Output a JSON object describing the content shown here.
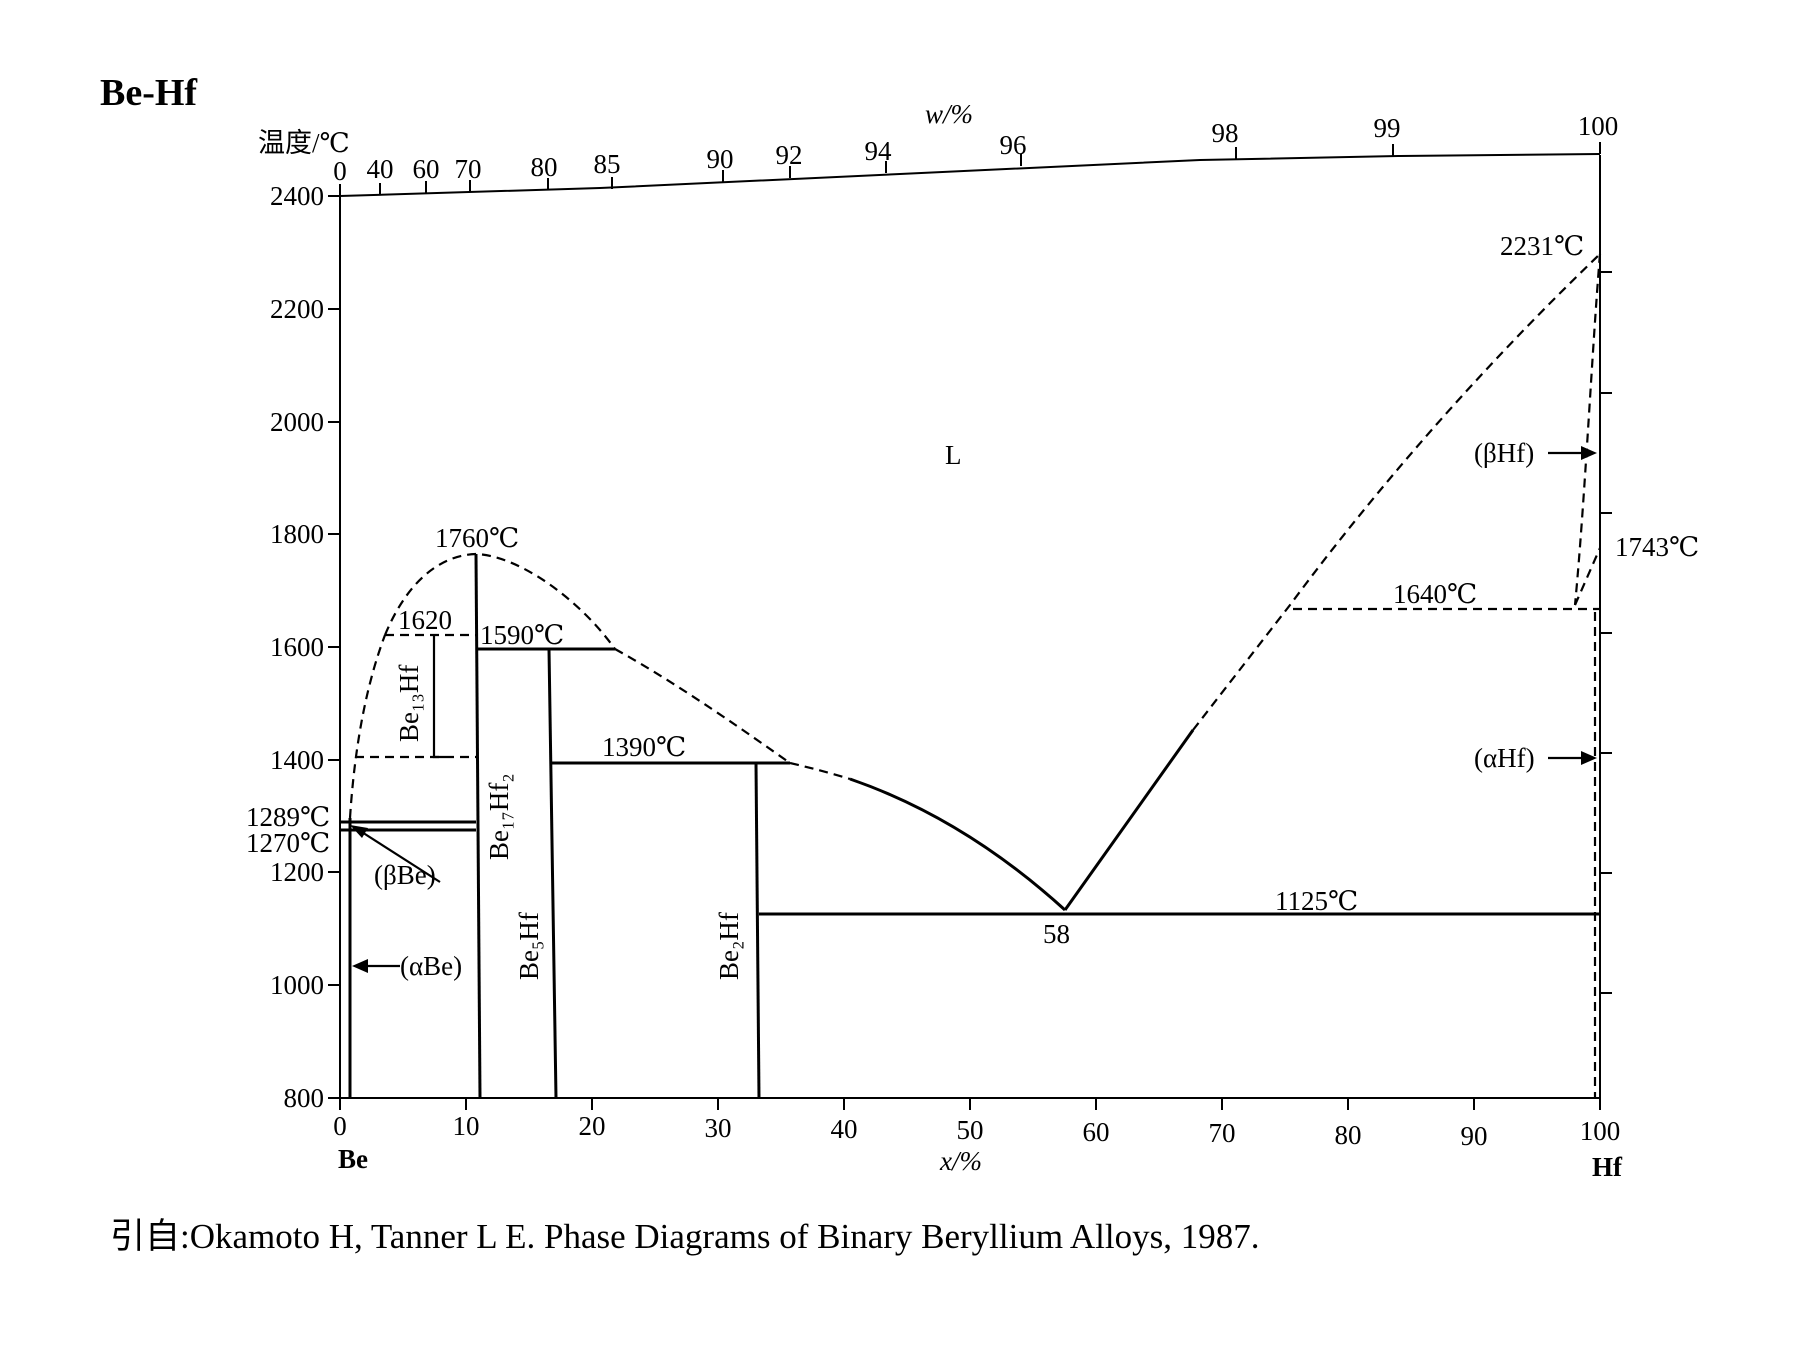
{
  "title": "Be-Hf",
  "axes": {
    "y_label": "温度/℃",
    "y_ticks": [
      "2400",
      "2200",
      "2000",
      "1800",
      "1600",
      "1400",
      "1200",
      "1000",
      "800"
    ],
    "x_label": "x/%",
    "x_ticks": [
      "0",
      "10",
      "20",
      "30",
      "40",
      "50",
      "60",
      "70",
      "80",
      "90",
      "100"
    ],
    "w_label": "w/%",
    "w_ticks": [
      "0",
      "40",
      "60",
      "70",
      "80",
      "85",
      "90",
      "92",
      "94",
      "96",
      "98",
      "99",
      "100"
    ],
    "left_element": "Be",
    "right_element": "Hf"
  },
  "labels": {
    "liquid": "L",
    "t_2231": "2231℃",
    "t_1760": "1760℃",
    "t_1620": "1620",
    "t_1590": "1590℃",
    "t_1390": "1390℃",
    "t_1289": "1289℃",
    "t_1270": "1270℃",
    "t_1743": "1743℃",
    "t_1640": "1640℃",
    "t_1125": "1125℃",
    "eutectic": "58",
    "beta_be": "(βBe)",
    "alpha_be": "(αBe)",
    "beta_hf": "(βHf)",
    "alpha_hf": "(αHf)",
    "be13hf": "Be₁₃Hf",
    "be17hf2": "Be₁₇Hf₂",
    "be5hf": "Be₅Hf",
    "be2hf": "Be₂Hf"
  },
  "caption": "引自:Okamoto H, Tanner L E. Phase Diagrams of Binary Beryllium Alloys, 1987."
}
